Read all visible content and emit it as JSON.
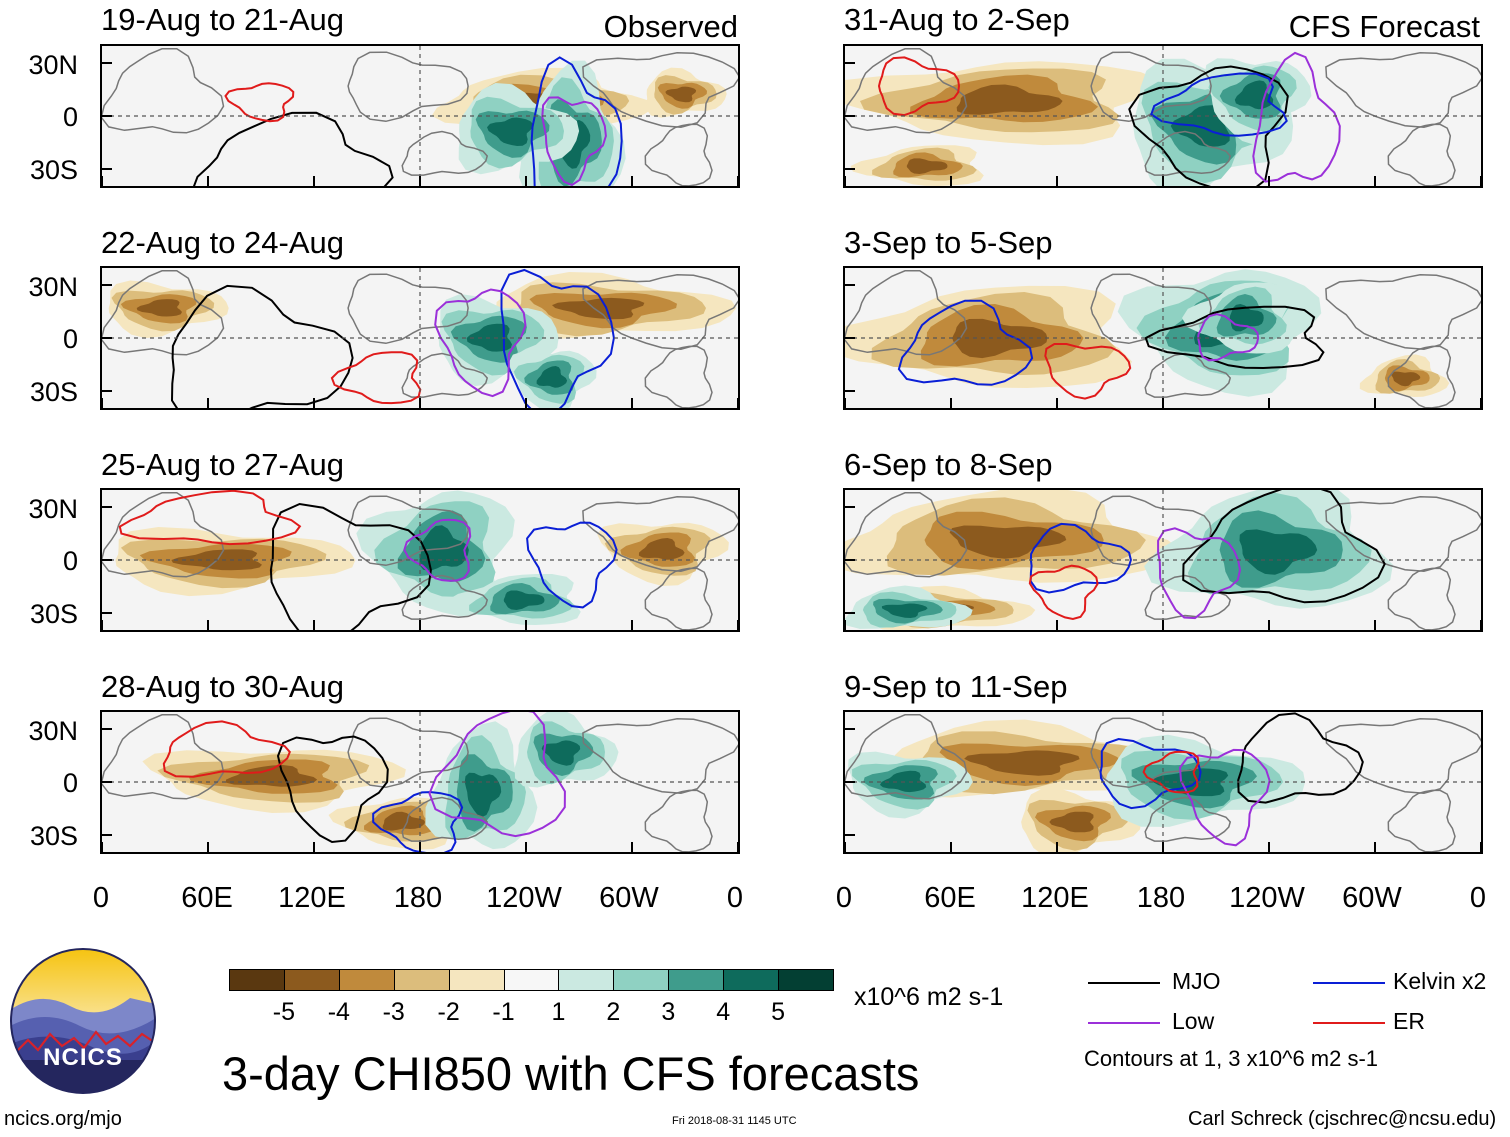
{
  "header": {
    "observed_label": "Observed",
    "forecast_label": "CFS Forecast"
  },
  "panels_left": [
    {
      "title": "19-Aug to 21-Aug"
    },
    {
      "title": "22-Aug to 24-Aug"
    },
    {
      "title": "25-Aug to 27-Aug"
    },
    {
      "title": "28-Aug to 30-Aug"
    }
  ],
  "panels_right": [
    {
      "title": "31-Aug to 2-Sep"
    },
    {
      "title": "3-Sep to 5-Sep"
    },
    {
      "title": "6-Sep to 8-Sep"
    },
    {
      "title": "9-Sep to 11-Sep"
    }
  ],
  "axes": {
    "lat_labels": [
      "30N",
      "0",
      "30S"
    ],
    "lon_labels": [
      "0",
      "60E",
      "120E",
      "180",
      "120W",
      "60W",
      "0"
    ]
  },
  "chart_data": {
    "type": "heatmap",
    "title": "3-day CHI850 with CFS forecasts",
    "variable": "CHI850",
    "units": "x10^6 m2 s-1",
    "colorbar": {
      "levels": [
        -5,
        -4,
        -3,
        -2,
        -1,
        1,
        2,
        3,
        4,
        5
      ],
      "tick_labels": [
        "-5",
        "-4",
        "-3",
        "-2",
        "-1",
        "1",
        "2",
        "3",
        "4",
        "5"
      ],
      "colors": [
        "#5a3810",
        "#8c5a1e",
        "#c08a3c",
        "#dcbd7c",
        "#f5e6bf",
        "#f7f7f7",
        "#cbe9e1",
        "#8fd1c2",
        "#3f9c8c",
        "#0e6b5c",
        "#033f33"
      ]
    },
    "lat_range": [
      "30S",
      "30N"
    ],
    "lon_range": [
      "0",
      "0"
    ]
  },
  "legend": {
    "items": [
      {
        "label": "MJO",
        "color": "#000000"
      },
      {
        "label": "Kelvin x2",
        "color": "#0a1fd6"
      },
      {
        "label": "Low",
        "color": "#9b30d9"
      },
      {
        "label": "ER",
        "color": "#e01b1b"
      }
    ],
    "note": "Contours at 1, 3 x10^6 m2 s-1"
  },
  "footer": {
    "logo_text": "NCICS",
    "url": "ncics.org/mjo",
    "timestamp": "Fri 2018-08-31 1145 UTC",
    "credit": "Carl Schreck (cjschrec@ncsu.edu)"
  }
}
